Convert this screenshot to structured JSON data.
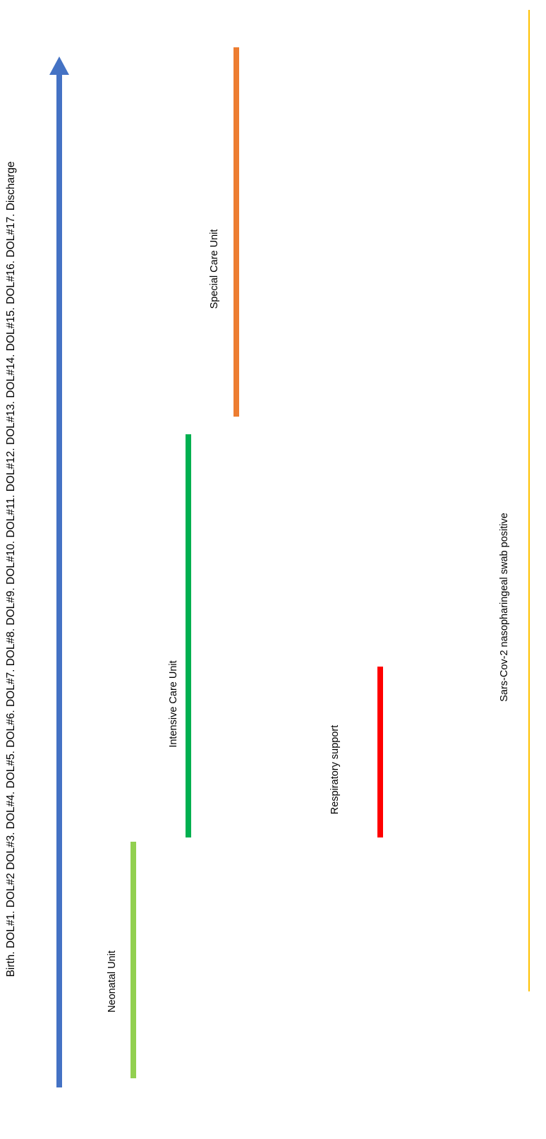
{
  "axis": {
    "text": "Birth.  DOL#1.  DOL#2  DOL#3.  DOL#4.  DOL#5.  DOL#6.  DOL#7.  DOL#8.  DOL#9.  DOL#10.  DOL#11.  DOL#12.  DOL#13.  DOL#14.  DOL#15.  DOL#16.  DOL#17.  Discharge",
    "color": "#4472C4"
  },
  "units": [
    {
      "label": "Neonatal Unit",
      "color": "#92D050"
    },
    {
      "label": "Intensive Care Unit",
      "color": "#00B050"
    },
    {
      "label": "Special Care Unit",
      "color": "#ED7D31"
    },
    {
      "label": "Respiratory support",
      "color": "#FF0000"
    },
    {
      "label": "Sars-Cov-2 nasopharingeal swab positive",
      "color": "#FFC000"
    }
  ]
}
